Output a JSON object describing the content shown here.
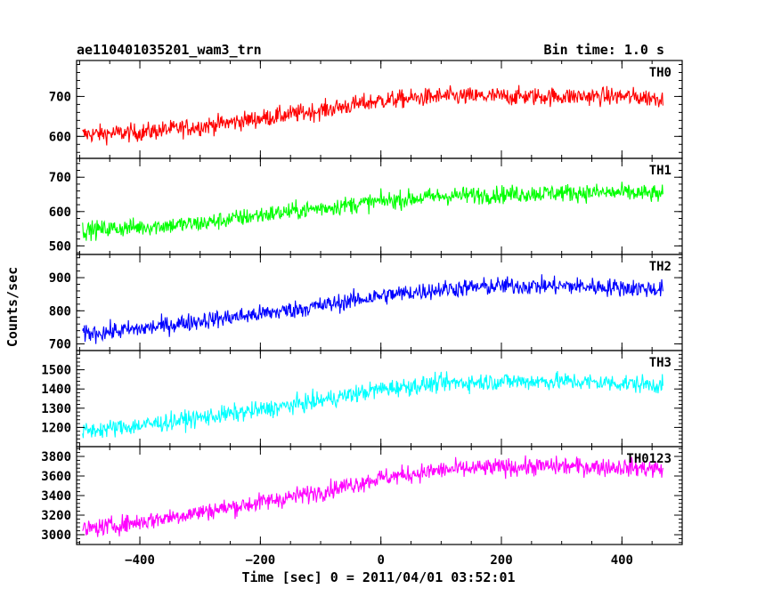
{
  "header": {
    "left_title": "ae110401035201_wam3_trn",
    "right_title": "Bin time: 1.0 s"
  },
  "chart_data": {
    "type": "line",
    "xlabel": "Time [sec] 0 = 2011/04/01 03:52:01",
    "ylabel": "Counts/sec",
    "xlim": [
      -505,
      500
    ],
    "x_ticks": [
      -400,
      -200,
      0,
      200,
      400
    ],
    "x_tick_labels": [
      "−400",
      "−200",
      "0",
      "200",
      "400"
    ],
    "grid": false,
    "panels": [
      {
        "name": "TH0",
        "color": "#ff0000",
        "ylim": [
          545,
          790
        ],
        "y_ticks": [
          600,
          700
        ],
        "y_tick_labels": [
          "600",
          "700"
        ],
        "trend_x": [
          -495,
          -400,
          -300,
          -200,
          -100,
          0,
          100,
          200,
          300,
          400,
          470
        ],
        "trend_y": [
          605,
          610,
          625,
          645,
          665,
          690,
          700,
          700,
          700,
          700,
          695
        ]
      },
      {
        "name": "TH1",
        "color": "#00ff00",
        "ylim": [
          475,
          755
        ],
        "y_ticks": [
          500,
          600,
          700
        ],
        "y_tick_labels": [
          "500",
          "600",
          "700"
        ],
        "trend_x": [
          -495,
          -400,
          -300,
          -200,
          -100,
          0,
          100,
          200,
          300,
          400,
          470
        ],
        "trend_y": [
          545,
          555,
          565,
          590,
          610,
          630,
          645,
          650,
          655,
          655,
          650
        ]
      },
      {
        "name": "TH2",
        "color": "#0000ff",
        "ylim": [
          680,
          970
        ],
        "y_ticks": [
          700,
          800,
          900
        ],
        "y_tick_labels": [
          "700",
          "800",
          "900"
        ],
        "trend_x": [
          -495,
          -400,
          -300,
          -200,
          -100,
          0,
          100,
          200,
          300,
          400,
          470
        ],
        "trend_y": [
          730,
          745,
          770,
          790,
          815,
          845,
          865,
          875,
          875,
          870,
          865
        ]
      },
      {
        "name": "TH3",
        "color": "#00ffff",
        "ylim": [
          1100,
          1600
        ],
        "y_ticks": [
          1200,
          1300,
          1400,
          1500
        ],
        "y_tick_labels": [
          "1200",
          "1300",
          "1400",
          "1500"
        ],
        "trend_x": [
          -495,
          -400,
          -300,
          -200,
          -100,
          0,
          100,
          200,
          300,
          400,
          470
        ],
        "trend_y": [
          1180,
          1210,
          1250,
          1290,
          1340,
          1400,
          1430,
          1440,
          1440,
          1430,
          1420
        ]
      },
      {
        "name": "TH0123",
        "color": "#ff00ff",
        "ylim": [
          2900,
          3900
        ],
        "y_ticks": [
          3000,
          3200,
          3400,
          3600,
          3800
        ],
        "y_tick_labels": [
          "3000",
          "3200",
          "3400",
          "3600",
          "3800"
        ],
        "trend_x": [
          -495,
          -400,
          -300,
          -200,
          -100,
          0,
          100,
          200,
          300,
          400,
          470
        ],
        "trend_y": [
          3050,
          3130,
          3230,
          3330,
          3440,
          3580,
          3660,
          3690,
          3700,
          3690,
          3670
        ]
      }
    ]
  }
}
